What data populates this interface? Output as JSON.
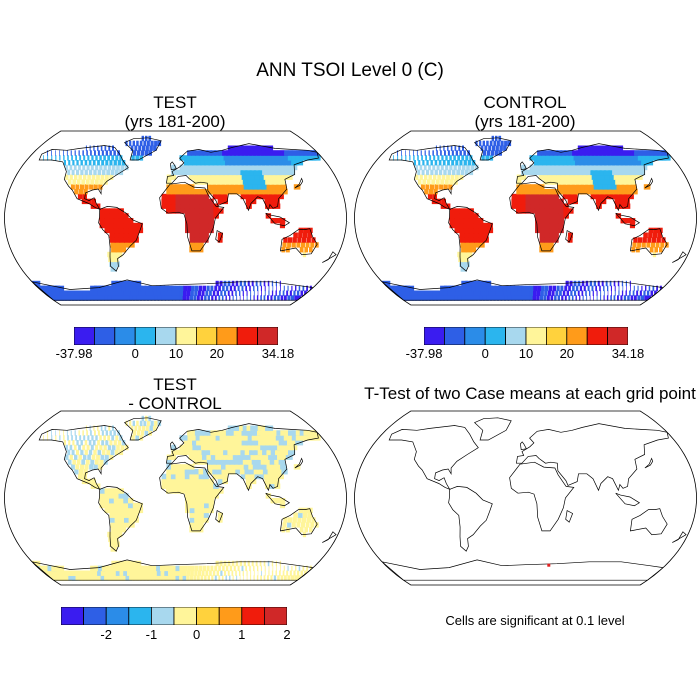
{
  "figure": {
    "title": "ANN TSOI Level 0 (C)"
  },
  "panels": {
    "test": {
      "title_line1": "TEST",
      "title_line2": "(yrs 181-200)"
    },
    "control": {
      "title_line1": "CONTROL",
      "title_line2": "(yrs 181-200)"
    },
    "diff": {
      "title_line1": "TEST",
      "title_line2": "- CONTROL"
    },
    "ttest": {
      "title": "T-Test of two Case means at each grid point",
      "note": "Cells are significant at 0.1 level"
    }
  },
  "colorbars": {
    "absolute": {
      "colors": [
        "#3a1cf0",
        "#2e5fe6",
        "#2b8ce8",
        "#2bb5ee",
        "#a8d8ee",
        "#fff59a",
        "#ffd23d",
        "#ff9b1a",
        "#f01c0c",
        "#d02828"
      ],
      "tick_labels": [
        "-37.98",
        "0",
        "10",
        "20",
        "34.18"
      ],
      "tick_positions": [
        0,
        3,
        5,
        7,
        10
      ]
    },
    "difference": {
      "colors": [
        "#3a1cf0",
        "#2e5fe6",
        "#2b8ce8",
        "#2bb5ee",
        "#a8d8ee",
        "#fff59a",
        "#ffd23d",
        "#ff9b1a",
        "#f01c0c",
        "#d02828"
      ],
      "tick_labels": [
        "-2",
        "-1",
        "0",
        "1",
        "2"
      ],
      "tick_positions": [
        2,
        4,
        6,
        8,
        10
      ]
    }
  }
}
